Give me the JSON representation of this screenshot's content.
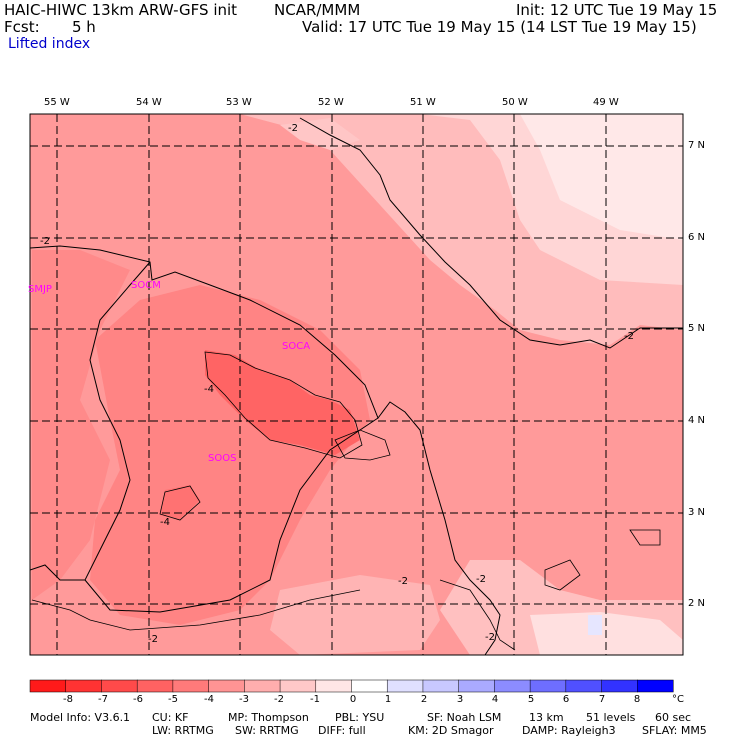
{
  "header": {
    "model_title": "HAIC-HIWC 13km ARW-GFS init",
    "organization": "NCAR/MMM",
    "init_time": "Init: 12 UTC Tue 19 May 15",
    "forecast_label": "Fcst:",
    "forecast_value": "5 h",
    "valid_time": "Valid: 17 UTC Tue 19 May 15 (14 LST Tue 19 May 15)",
    "field_name": "Lifted index"
  },
  "longitude_labels": [
    "55 W",
    "54 W",
    "53 W",
    "52 W",
    "51 W",
    "50 W",
    "49 W"
  ],
  "latitude_labels": [
    "7 N",
    "6 N",
    "5 N",
    "4 N",
    "3 N",
    "2 N"
  ],
  "stations": [
    "SMJP",
    "SOCM",
    "SOCA",
    "SOOS"
  ],
  "contour_labels": [
    "-2",
    "-2",
    "-4",
    "-4",
    "-2",
    "-2",
    "-2",
    "-2",
    "-2"
  ],
  "colorbar": {
    "ticks": [
      "-8",
      "-7",
      "-6",
      "-5",
      "-4",
      "-3",
      "-2",
      "-1",
      "0",
      "1",
      "2",
      "3",
      "4",
      "5",
      "6",
      "7",
      "8"
    ],
    "unit": "°C",
    "colors": [
      "#ff1a1a",
      "#ff3333",
      "#ff4a4a",
      "#ff6262",
      "#ff7a7a",
      "#ff9494",
      "#ffaeae",
      "#ffc8c8",
      "#ffe6e6",
      "#ffffff",
      "#e0e0ff",
      "#c8c8ff",
      "#aaaaff",
      "#8c8cff",
      "#6e6eff",
      "#5050ff",
      "#3232ff",
      "#0000ff"
    ]
  },
  "model_info": {
    "line1": [
      "Model Info: V3.6.1",
      "CU: KF",
      "MP: Thompson",
      "PBL: YSU",
      "SF: Noah LSM",
      "13 km",
      "51 levels",
      "60 sec"
    ],
    "line2": [
      "LW: RRTMG",
      "SW: RRTMG",
      "DIFF: full",
      "KM: 2D Smagor",
      "DAMP: Rayleigh3",
      "SFLAY: MM5"
    ]
  }
}
